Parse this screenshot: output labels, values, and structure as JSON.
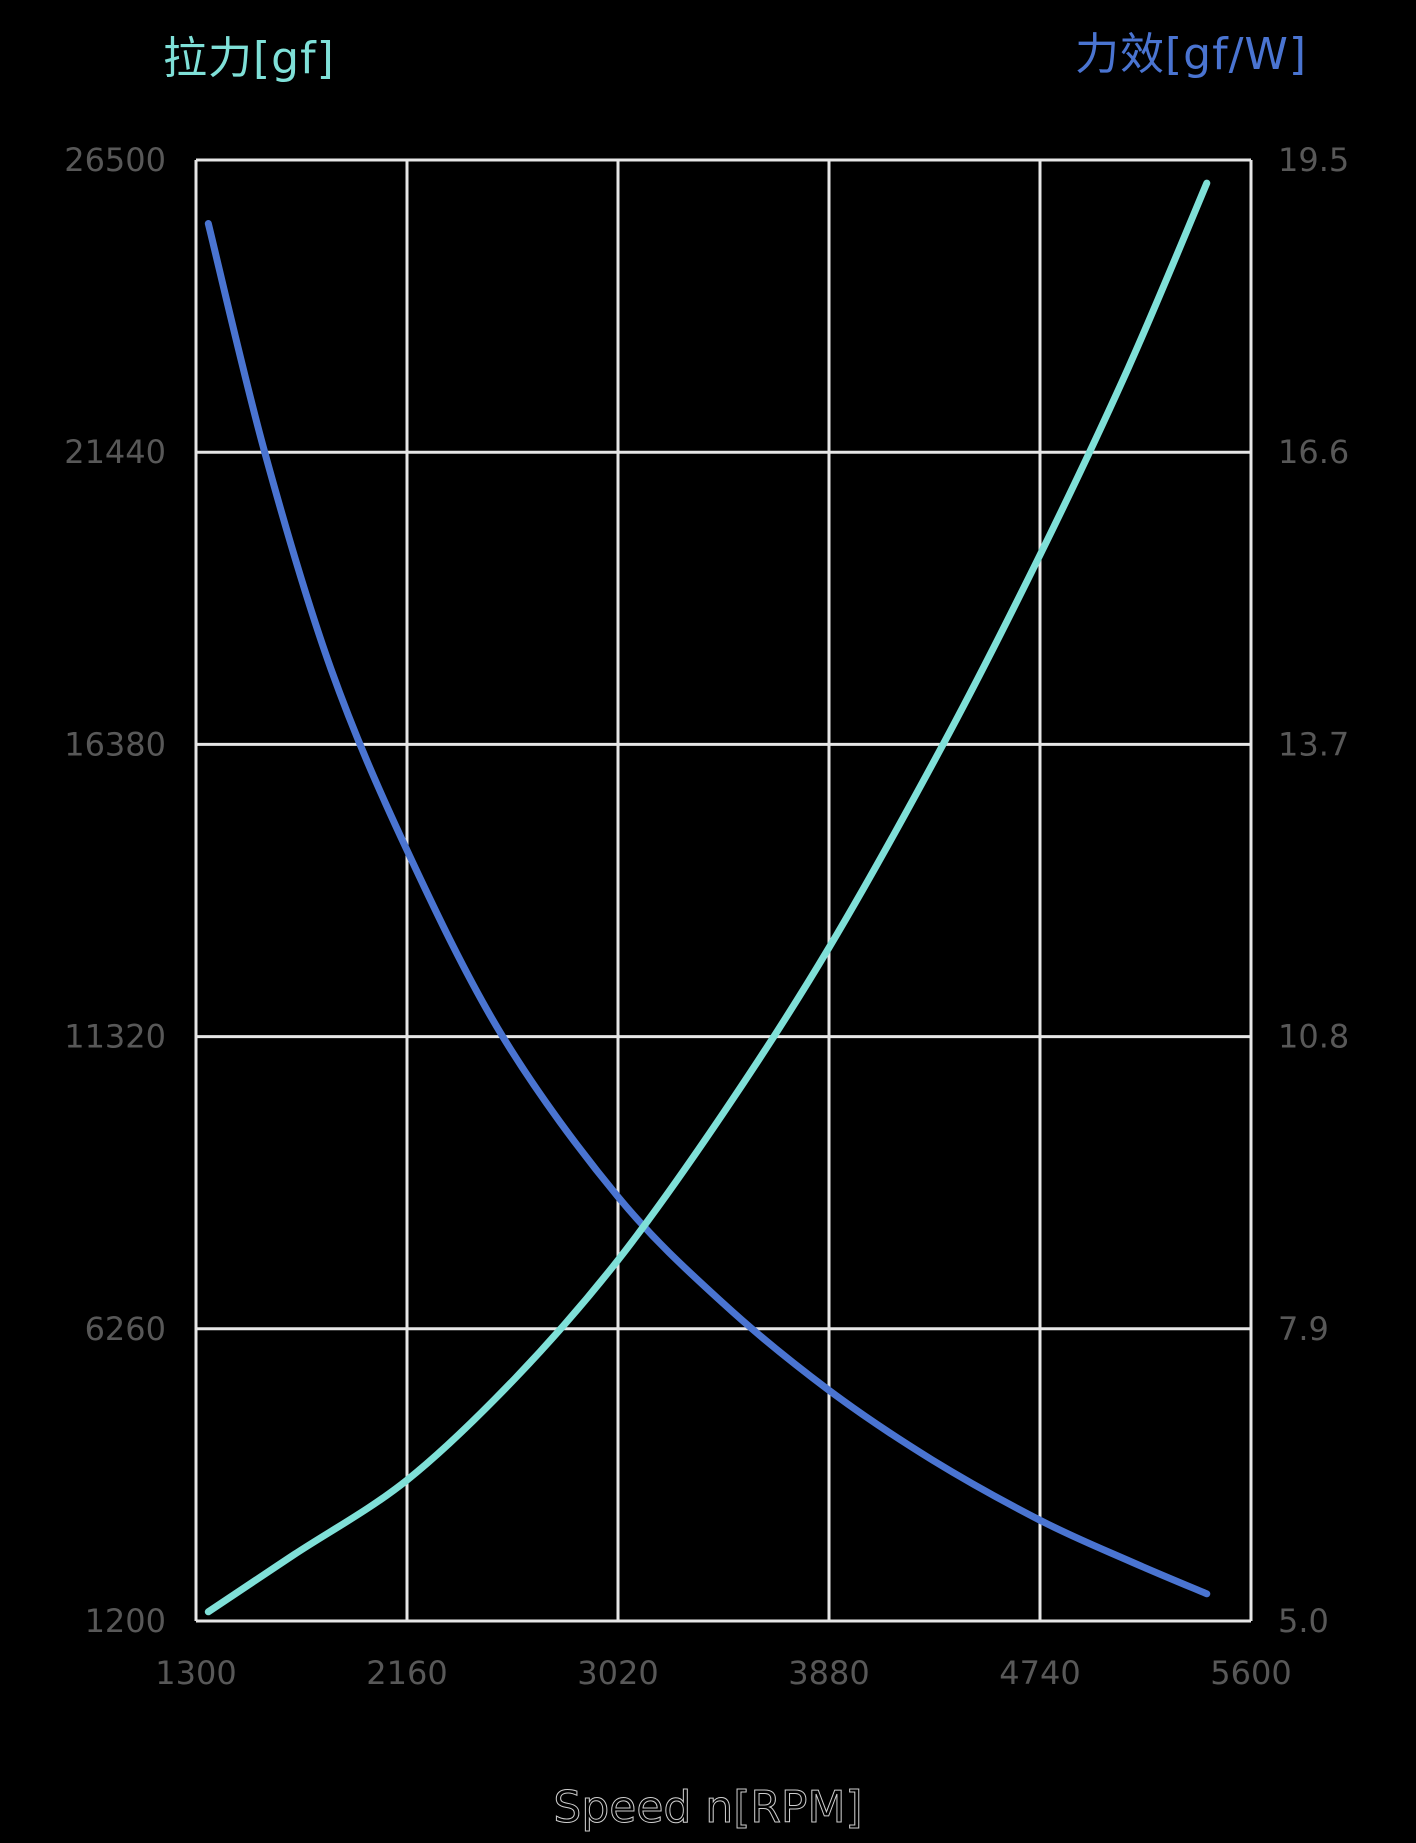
{
  "chart_data": {
    "type": "line",
    "title": "",
    "xlabel": "Speed n[RPM]",
    "ylabel_left": "拉力[gf]",
    "ylabel_right": "力效[gf/W]",
    "xlim": [
      1300,
      5600
    ],
    "ylim_left": [
      1200,
      26500
    ],
    "ylim_right": [
      5.0,
      19.5
    ],
    "x_ticks": [
      "1300",
      "2160",
      "3020",
      "3880",
      "4740",
      "5600"
    ],
    "y_ticks_left": [
      "26500",
      "21440",
      "16380",
      "11320",
      "6260",
      "1200"
    ],
    "y_ticks_right": [
      "19.5",
      "16.6",
      "13.7",
      "10.8",
      "7.9",
      "5.0"
    ],
    "grid": true,
    "legend": "none (axis titles colored per series)",
    "series": [
      {
        "name": "拉力[gf]",
        "axis": "left",
        "color": "#7fe0d8",
        "x": [
          1350,
          1700,
          2160,
          2600,
          3020,
          3450,
          3880,
          4345,
          4740,
          5100,
          5420
        ],
        "values": [
          1360,
          2350,
          3640,
          5400,
          7450,
          10000,
          12860,
          16380,
          19660,
          22900,
          26100
        ]
      },
      {
        "name": "力效[gf/W]",
        "axis": "right",
        "color": "#4a74d1",
        "x": [
          1350,
          1580,
          1850,
          2160,
          2550,
          3020,
          3450,
          3880,
          4300,
          4740,
          5100,
          5420
        ],
        "values": [
          18.87,
          16.6,
          14.45,
          12.65,
          10.8,
          9.21,
          8.15,
          7.29,
          6.6,
          6.0,
          5.6,
          5.27
        ]
      }
    ]
  },
  "labels": {
    "left_axis_title": "拉力[gf]",
    "right_axis_title": "力效[gf/W]",
    "x_axis_title": "Speed n[RPM]"
  },
  "colors": {
    "background": "#000000",
    "grid": "#e6e6e6",
    "tick_text": "#585858",
    "thrust": "#7fe0d8",
    "efficiency": "#4a74d1"
  }
}
